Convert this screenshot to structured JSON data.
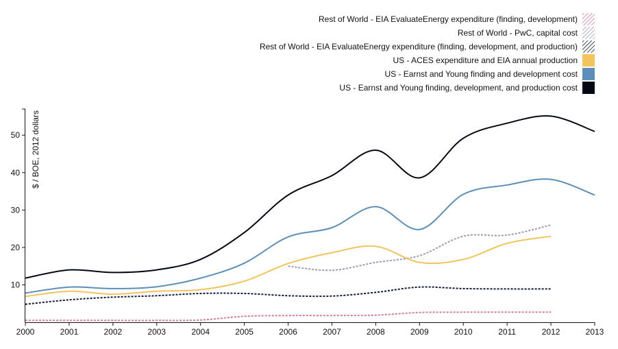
{
  "chart_data": {
    "type": "line",
    "title": "",
    "xlabel": "",
    "ylabel": "$ / BOE, 2012 dollars",
    "xlim": [
      2000,
      2013
    ],
    "ylim": [
      0,
      57
    ],
    "x_ticks": [
      2000,
      2001,
      2002,
      2003,
      2004,
      2005,
      2006,
      2007,
      2008,
      2009,
      2010,
      2011,
      2012,
      2013
    ],
    "y_ticks": [
      10,
      20,
      30,
      40,
      50
    ],
    "legend_position": "top-right",
    "series": [
      {
        "name": "Rest of World - EIA EvaluateEnergy expenditure (finding, development)",
        "color": "#d77a9e",
        "style": "dotted",
        "legend_swatch": "hatched",
        "x": [
          2000,
          2001,
          2002,
          2003,
          2004,
          2005,
          2006,
          2007,
          2008,
          2009,
          2010,
          2011,
          2012
        ],
        "y": [
          0.5,
          0.5,
          0.5,
          0.5,
          0.6,
          1.6,
          1.8,
          1.8,
          1.9,
          2.6,
          2.7,
          2.7,
          2.7
        ]
      },
      {
        "name": "Rest of World - PwC, capital cost",
        "color": "#9a9cb2",
        "style": "dotted",
        "legend_swatch": "hatched",
        "x": [
          2006,
          2007,
          2008,
          2009,
          2010,
          2011,
          2012
        ],
        "y": [
          15.0,
          13.9,
          16.0,
          17.8,
          23.0,
          23.3,
          26.0
        ]
      },
      {
        "name": "Rest of World - EIA EvaluateEnergy expenditure (finding, development, and production)",
        "color": "#121a40",
        "style": "dotted",
        "legend_swatch": "hatched",
        "x": [
          2000,
          2001,
          2002,
          2003,
          2004,
          2005,
          2006,
          2007,
          2008,
          2009,
          2010,
          2011,
          2012
        ],
        "y": [
          4.8,
          6.0,
          6.7,
          7.1,
          7.7,
          7.7,
          7.1,
          7.0,
          8.0,
          9.4,
          9.0,
          8.9,
          8.9
        ]
      },
      {
        "name": "US - ACES expenditure and EIA annual production",
        "color": "#f2c45c",
        "style": "solid",
        "legend_swatch": "solid",
        "x": [
          2000,
          2001,
          2002,
          2003,
          2004,
          2005,
          2006,
          2007,
          2008,
          2009,
          2010,
          2011,
          2012
        ],
        "y": [
          6.9,
          8.3,
          7.5,
          8.3,
          8.7,
          11.0,
          15.7,
          18.6,
          20.3,
          16.0,
          16.8,
          21.1,
          23.0
        ]
      },
      {
        "name": "US - Earnst and Young finding and development cost",
        "color": "#5b8fb9",
        "style": "solid",
        "legend_swatch": "solid",
        "x": [
          2000,
          2001,
          2002,
          2003,
          2004,
          2005,
          2006,
          2007,
          2008,
          2009,
          2010,
          2011,
          2012,
          2013
        ],
        "y": [
          7.8,
          9.4,
          9.0,
          9.5,
          11.8,
          15.8,
          22.8,
          25.3,
          30.9,
          24.8,
          34.2,
          36.7,
          38.2,
          34.0
        ]
      },
      {
        "name": "US - Earnst and Young finding, development, and production cost",
        "color": "#050814",
        "style": "solid",
        "legend_swatch": "solid",
        "x": [
          2000,
          2001,
          2002,
          2003,
          2004,
          2005,
          2006,
          2007,
          2008,
          2009,
          2010,
          2011,
          2012,
          2013
        ],
        "y": [
          11.8,
          14.0,
          13.3,
          14.0,
          16.8,
          24.0,
          34.0,
          39.2,
          46.0,
          38.6,
          49.2,
          53.2,
          55.1,
          51.0
        ]
      }
    ]
  }
}
